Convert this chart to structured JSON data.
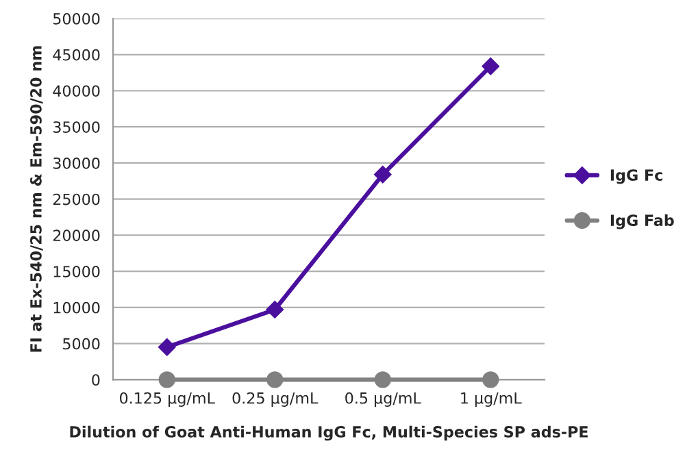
{
  "chart_data": {
    "type": "line",
    "xlabel": "Dilution of Goat Anti-Human IgG Fc, Multi-Species SP ads-PE",
    "ylabel": "FI at Ex-540/25 nm & Em-590/20 nm",
    "categories": [
      "0.125 µg/mL",
      "0.25 µg/mL",
      "0.5 µg/mL",
      "1 µg/mL"
    ],
    "series": [
      {
        "name": "IgG Fc",
        "color": "#4b0f9e",
        "marker": "diamond",
        "values": [
          4500,
          9700,
          28400,
          43400
        ]
      },
      {
        "name": "IgG Fab",
        "color": "#808080",
        "marker": "circle",
        "values": [
          0,
          0,
          0,
          0
        ]
      }
    ],
    "ylim": [
      0,
      50000
    ],
    "yticks": [
      0,
      5000,
      10000,
      15000,
      20000,
      25000,
      30000,
      35000,
      40000,
      45000,
      50000
    ],
    "grid": "y",
    "legend": "right",
    "line_style": "solid"
  }
}
